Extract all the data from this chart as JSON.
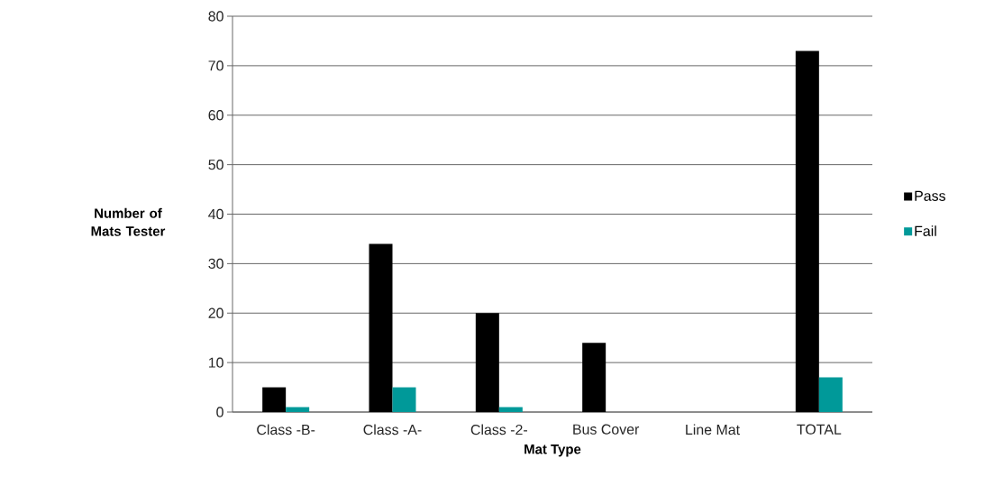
{
  "chart_data": {
    "type": "bar",
    "categories": [
      "Class -B-",
      "Class -A-",
      "Class -2-",
      "Bus Cover",
      "Line Mat",
      "TOTAL"
    ],
    "series": [
      {
        "name": "Pass",
        "color": "#000000",
        "values": [
          5,
          34,
          20,
          14,
          0,
          73
        ]
      },
      {
        "name": "Fail",
        "color": "#009999",
        "values": [
          1,
          5,
          1,
          0,
          0,
          7
        ]
      }
    ],
    "xlabel": "Mat Type",
    "ylabel": "Number of Mats Tester",
    "ylim": [
      0,
      80
    ],
    "yticks": [
      0,
      10,
      20,
      30,
      40,
      50,
      60,
      70,
      80
    ],
    "grid": "y",
    "legend": "right"
  }
}
